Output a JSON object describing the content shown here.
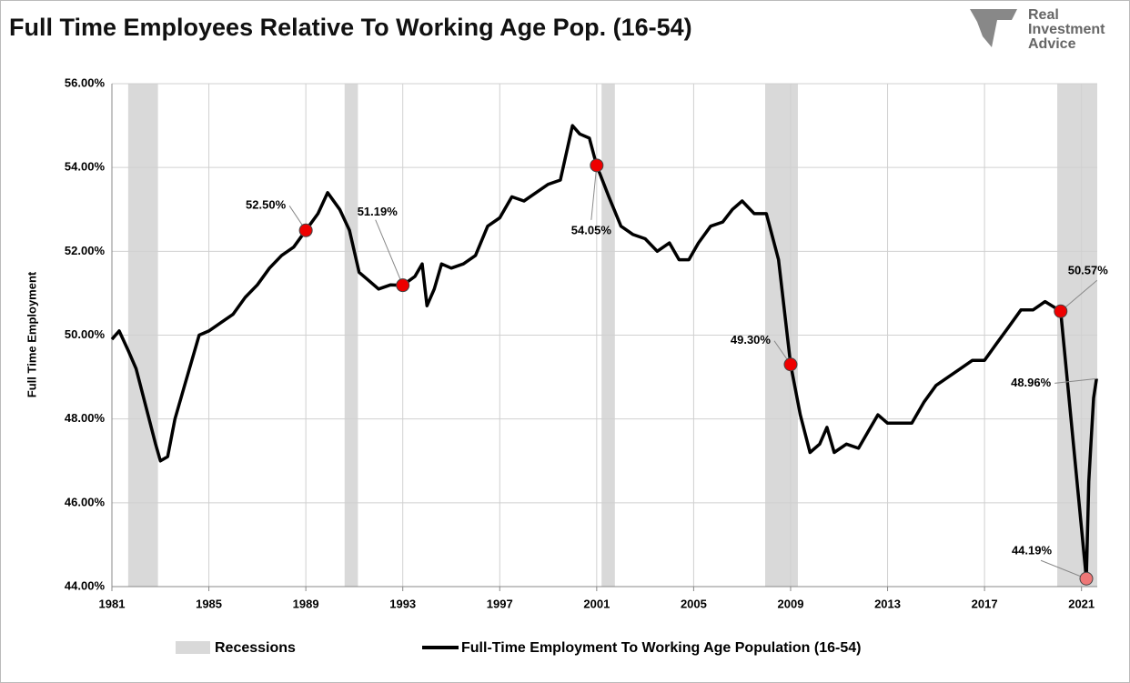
{
  "chart_data": {
    "type": "line",
    "title": "Full Time Employees Relative To Working Age Pop. (16-54)",
    "logo": [
      "Real",
      "Investment",
      "Advice"
    ],
    "y_label": "Full Time Employment",
    "xlim": [
      1981,
      2021.65
    ],
    "xticks": [
      1981,
      1985,
      1989,
      1993,
      1997,
      2001,
      2005,
      2009,
      2013,
      2017,
      2021
    ],
    "ylim": [
      44,
      56
    ],
    "yticks": [
      {
        "value": 44,
        "label": "44.00%"
      },
      {
        "value": 46,
        "label": "46.00%"
      },
      {
        "value": 48,
        "label": "48.00%"
      },
      {
        "value": 50,
        "label": "50.00%"
      },
      {
        "value": 52,
        "label": "52.00%"
      },
      {
        "value": 54,
        "label": "54.00%"
      },
      {
        "value": 56,
        "label": "56.00%"
      }
    ],
    "grid": true,
    "recessions": {
      "name": "Recessions",
      "color": "#d9d9d9",
      "ranges": [
        [
          1981.67,
          1982.9
        ],
        [
          1990.6,
          1991.15
        ],
        [
          2001.2,
          2001.75
        ],
        [
          2007.95,
          2009.3
        ],
        [
          2020.0,
          2021.65
        ]
      ]
    },
    "series": [
      {
        "name": "Full-Time Employment To Working Age Population (16-54)",
        "color": "#000000",
        "x": [
          1981.0,
          1981.3,
          1981.7,
          1982.0,
          1982.4,
          1982.8,
          1983.0,
          1983.3,
          1983.6,
          1984.0,
          1984.4,
          1984.6,
          1985.0,
          1985.5,
          1986.0,
          1986.5,
          1987.0,
          1987.5,
          1988.0,
          1988.5,
          1989.0,
          1989.5,
          1989.9,
          1990.4,
          1990.8,
          1991.2,
          1991.6,
          1992.0,
          1992.5,
          1993.0,
          1993.5,
          1993.8,
          1994.0,
          1994.3,
          1994.6,
          1995.0,
          1995.5,
          1996.0,
          1996.5,
          1997.0,
          1997.5,
          1998.0,
          1998.5,
          1999.0,
          1999.5,
          2000.0,
          2000.3,
          2000.7,
          2001.0,
          2001.5,
          2002.0,
          2002.5,
          2003.0,
          2003.5,
          2004.0,
          2004.4,
          2004.8,
          2005.2,
          2005.7,
          2006.2,
          2006.6,
          2007.0,
          2007.5,
          2008.0,
          2008.5,
          2009.0,
          2009.4,
          2009.8,
          2010.2,
          2010.5,
          2010.8,
          2011.3,
          2011.8,
          2012.2,
          2012.6,
          2013.0,
          2013.5,
          2014.0,
          2014.5,
          2015.0,
          2015.5,
          2016.0,
          2016.5,
          2017.0,
          2017.5,
          2018.0,
          2018.5,
          2019.0,
          2019.5,
          2020.14,
          2021.2,
          2021.3,
          2021.4,
          2021.5,
          2021.62
        ],
        "values": [
          49.9,
          50.1,
          49.6,
          49.2,
          48.3,
          47.4,
          47.0,
          47.1,
          48.0,
          48.8,
          49.6,
          50.0,
          50.1,
          50.3,
          50.5,
          50.9,
          51.2,
          51.6,
          51.9,
          52.1,
          52.5,
          52.9,
          53.4,
          53.0,
          52.5,
          51.5,
          51.3,
          51.1,
          51.2,
          51.19,
          51.4,
          51.7,
          50.7,
          51.1,
          51.7,
          51.6,
          51.7,
          51.9,
          52.6,
          52.8,
          53.3,
          53.2,
          53.4,
          53.6,
          53.7,
          55.0,
          54.8,
          54.7,
          54.05,
          53.3,
          52.6,
          52.4,
          52.3,
          52.0,
          52.2,
          51.8,
          51.8,
          52.2,
          52.6,
          52.7,
          53.0,
          53.2,
          52.9,
          52.9,
          51.8,
          49.3,
          48.1,
          47.2,
          47.4,
          47.8,
          47.2,
          47.4,
          47.3,
          47.7,
          48.1,
          47.9,
          47.9,
          47.9,
          48.4,
          48.8,
          49.0,
          49.2,
          49.4,
          49.4,
          49.8,
          50.2,
          50.6,
          50.6,
          50.8,
          50.57,
          44.19,
          46.5,
          47.5,
          48.5,
          48.96
        ]
      }
    ],
    "annotations": [
      {
        "label": "52.50%",
        "x": 1989.0,
        "value": 52.5
      },
      {
        "label": "51.19%",
        "x": 1993.0,
        "value": 51.19
      },
      {
        "label": "54.05%",
        "x": 2001.0,
        "value": 54.05
      },
      {
        "label": "49.30%",
        "x": 2009.0,
        "value": 49.3
      },
      {
        "label": "50.57%",
        "x": 2020.14,
        "value": 50.57
      },
      {
        "label": "44.19%",
        "x": 2021.2,
        "value": 44.19
      },
      {
        "label": "48.96%",
        "x": 2021.62,
        "value": 48.96
      }
    ]
  }
}
